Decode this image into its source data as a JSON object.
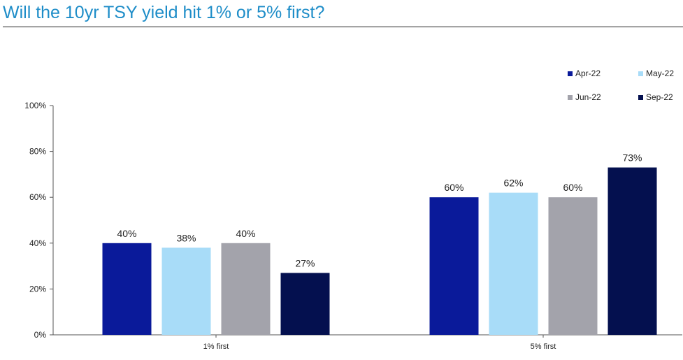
{
  "header": {
    "title": "Will the 10yr TSY yield hit 1% or 5% first?"
  },
  "colors": {
    "title": "#1e8dc8",
    "series": [
      "#0a1a9a",
      "#a8dcf8",
      "#a3a3ab",
      "#04104f"
    ]
  },
  "chart_data": {
    "type": "bar",
    "title": "Will the 10yr TSY yield hit 1% or 5% first?",
    "xlabel": "",
    "ylabel": "",
    "categories": [
      "1% first",
      "5% first"
    ],
    "series": [
      {
        "name": "Apr-22",
        "color": "#0a1a9a",
        "values": [
          40,
          60
        ],
        "labels": [
          "40%",
          "60%"
        ]
      },
      {
        "name": "May-22",
        "color": "#a8dcf8",
        "values": [
          38,
          62
        ],
        "labels": [
          "38%",
          "62%"
        ]
      },
      {
        "name": "Jun-22",
        "color": "#a3a3ab",
        "values": [
          40,
          60
        ],
        "labels": [
          "40%",
          "60%"
        ]
      },
      {
        "name": "Sep-22",
        "color": "#04104f",
        "values": [
          27,
          73
        ],
        "labels": [
          "27%",
          "73%"
        ]
      }
    ],
    "ylim": [
      0,
      100
    ],
    "yticks": [
      0,
      20,
      40,
      60,
      80,
      100
    ],
    "ytick_labels": [
      "0%",
      "20%",
      "40%",
      "60%",
      "80%",
      "100%"
    ],
    "grid": false,
    "legend_position": "top-right"
  }
}
